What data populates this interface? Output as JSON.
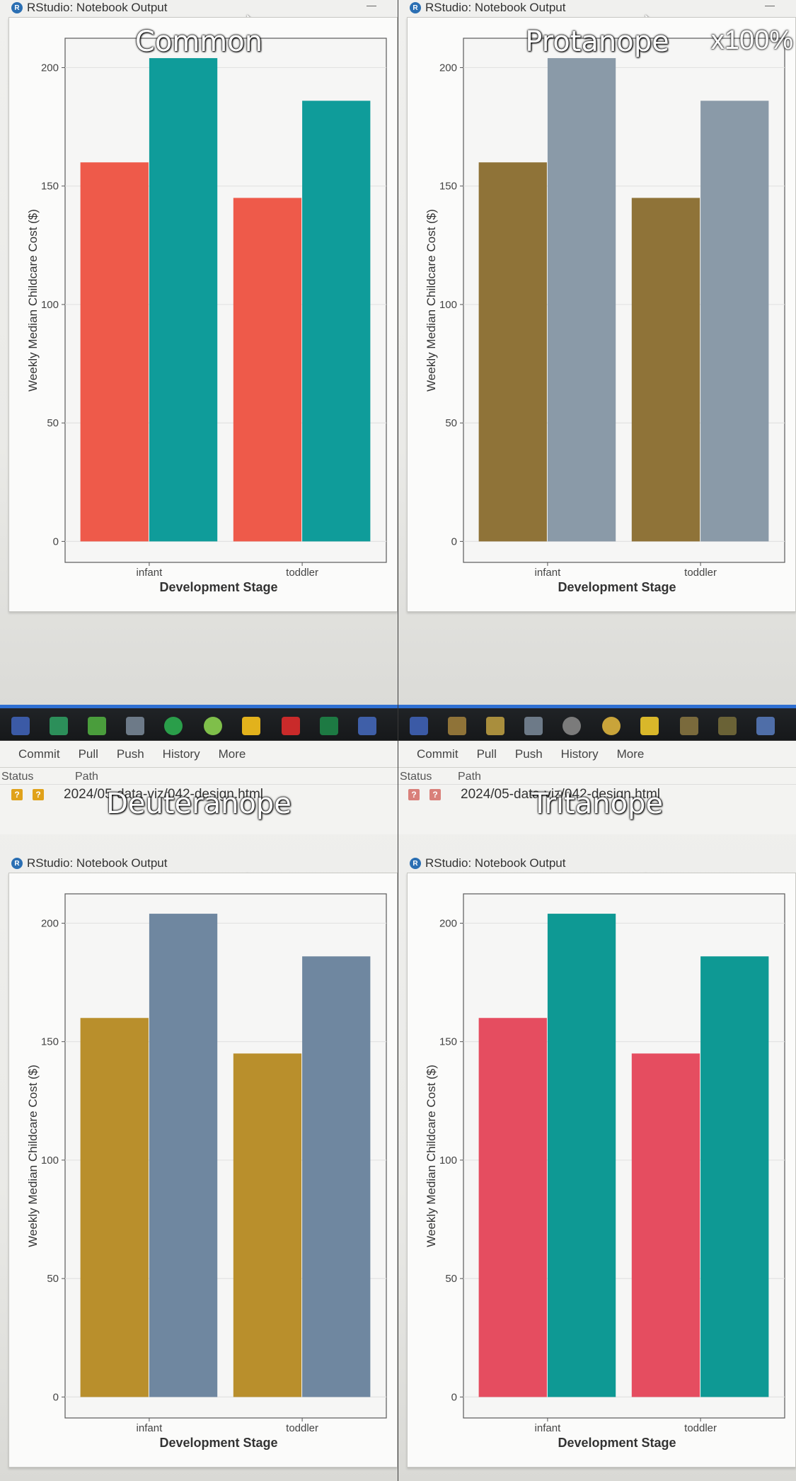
{
  "window_title": "RStudio: Notebook Output",
  "zoom_label": "x100%",
  "git": {
    "commit": "Commit",
    "pull": "Pull",
    "push": "Push",
    "history": "History",
    "more": "More",
    "status_header": "Status",
    "path_header": "Path",
    "file_path": "2024/05-data-viz/042-design.html"
  },
  "panels": [
    {
      "label": "Common",
      "colors": [
        "#ee5a4a",
        "#0f9c9a"
      ]
    },
    {
      "label": "Protanope",
      "colors": [
        "#8f7338",
        "#8a9aa8"
      ]
    },
    {
      "label": "Deuteranope",
      "colors": [
        "#b98f2c",
        "#6f87a0"
      ]
    },
    {
      "label": "Tritanope",
      "colors": [
        "#e54d60",
        "#0e9994"
      ]
    }
  ],
  "chart_data": {
    "type": "bar",
    "categories": [
      "infant",
      "toddler"
    ],
    "series": [
      {
        "values": [
          160,
          145
        ]
      },
      {
        "values": [
          204,
          186
        ]
      }
    ],
    "xlabel": "Development Stage",
    "ylabel": "Weekly Median Childcare Cost ($)",
    "ylim": [
      0,
      210
    ],
    "yticks": [
      0,
      50,
      100,
      150,
      200
    ],
    "grid": true
  }
}
